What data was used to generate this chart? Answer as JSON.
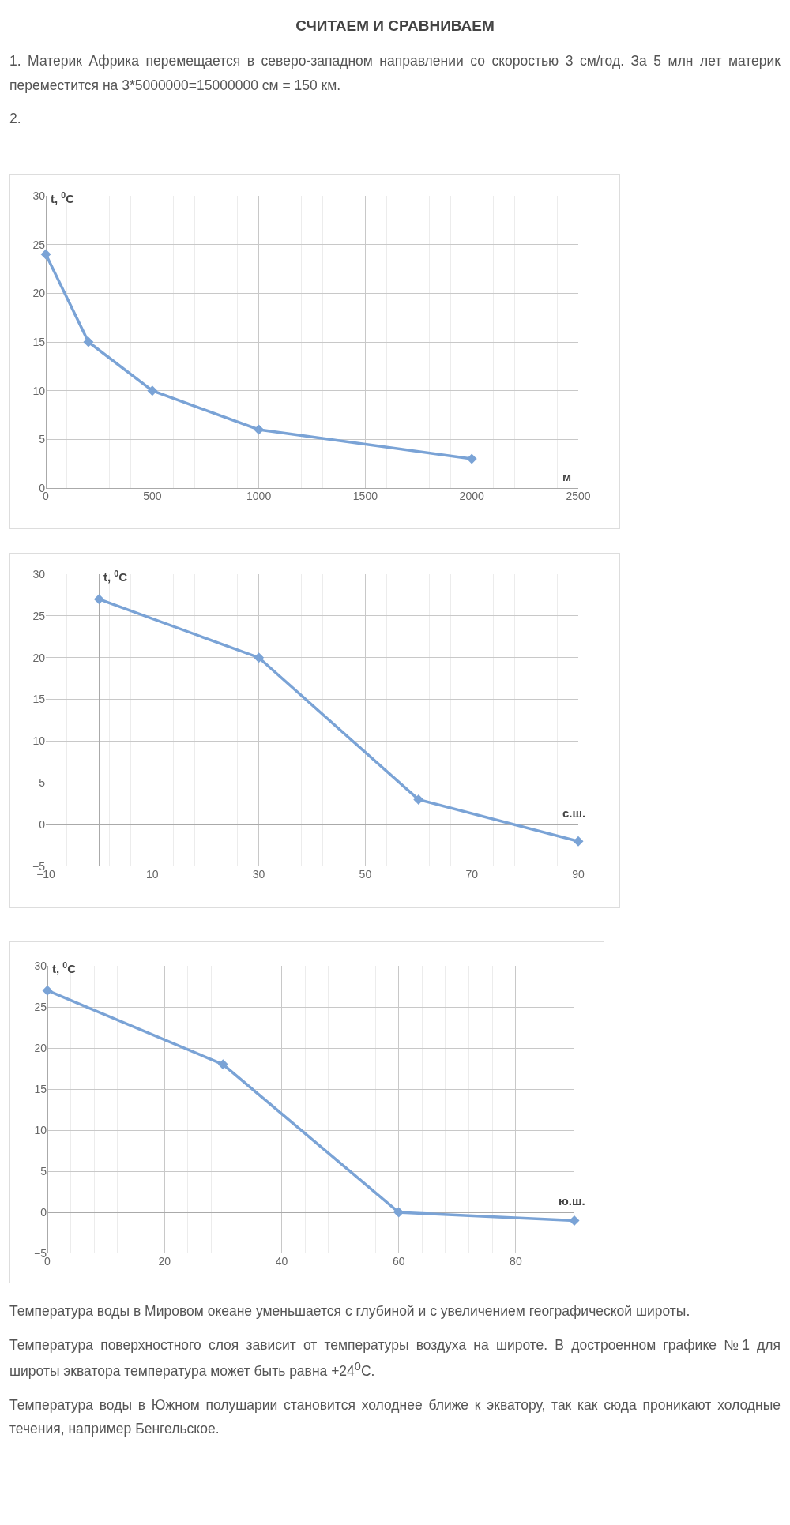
{
  "chart_data": [
    {
      "type": "line",
      "title": "СЧИТАЕМ И СРАВНИВАЕМ",
      "annotations": [
        "1. Материк Африка перемещается в северо-западном направлении со скоростью 3 см/год. За 5 млн лет материк переместится на 3*5000000=15000000 см = 150 км.",
        "2."
      ],
      "xlabel": "м",
      "ylabel": "t, $^{0}$C",
      "x": [
        0,
        200,
        500,
        1000,
        2000
      ],
      "values": [
        24,
        15,
        10,
        6,
        3
      ],
      "color": "#7aa3d6",
      "xlim": [
        0,
        2500
      ],
      "xticks": [
        0,
        500,
        1000,
        1500,
        2000,
        2500
      ],
      "ylim": [
        0,
        30
      ],
      "yticks": [
        0,
        5,
        10,
        15,
        20,
        25,
        30
      ],
      "grid": true,
      "marker": "diamond",
      "line_style": "solid"
    },
    {
      "type": "line",
      "xlabel": "с.ш.",
      "ylabel": "t, $^{0}$C",
      "x": [
        0,
        30,
        60,
        90
      ],
      "values": [
        27,
        20,
        3,
        -2
      ],
      "color": "#7aa3d6",
      "xlim": [
        -10,
        90
      ],
      "xticks": [
        -10,
        10,
        30,
        50,
        70,
        90
      ],
      "ylim": [
        -5,
        30
      ],
      "yticks": [
        -5,
        0,
        5,
        10,
        15,
        20,
        25,
        30
      ],
      "grid": true,
      "marker": "diamond",
      "line_style": "solid"
    },
    {
      "type": "line",
      "xlabel": "ю.ш.",
      "ylabel": "t, $^{0}$C",
      "x": [
        0,
        30,
        60,
        90
      ],
      "values": [
        27,
        18,
        0,
        -1
      ],
      "color": "#7aa3d6",
      "xlim": [
        0,
        90
      ],
      "xticks": [
        0,
        20,
        40,
        60,
        80
      ],
      "ylim": [
        -5,
        30
      ],
      "yticks": [
        -5,
        0,
        5,
        10,
        15,
        20,
        25,
        30
      ],
      "grid": true,
      "marker": "diamond",
      "line_style": "solid",
      "annotations": [
        "Температура воды в Мировом океане уменьшается с глубиной и с увеличением географической широты.",
        "Температура поверхностного слоя зависит от температуры воздуха на широте. В достроенном графике №1 для широты экватора температура может быть равна +24$^{0}$С.",
        "Температура воды в Южном полушарии становится холоднее ближе к экватору, так как сюда проникают холодные течения, например Бенгельское."
      ]
    }
  ]
}
